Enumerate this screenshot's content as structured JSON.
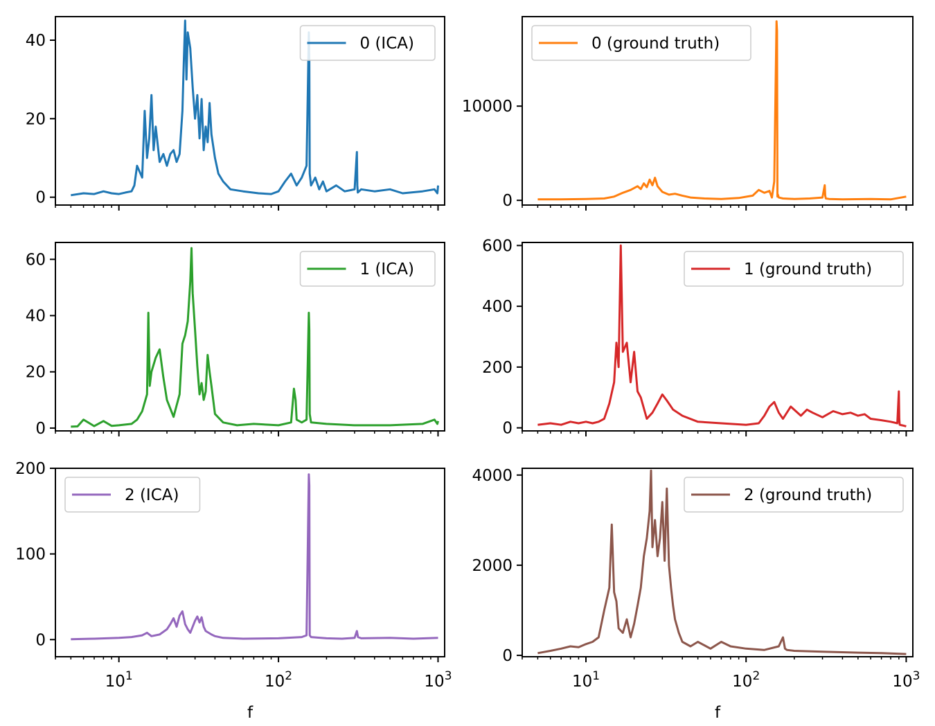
{
  "chart_data": [
    {
      "type": "line",
      "xscale": "log",
      "xlim": [
        4,
        1100
      ],
      "ylim": [
        -2,
        46
      ],
      "yticks": [
        0,
        20,
        40
      ],
      "xticks": [
        10,
        100,
        1000
      ],
      "xticklabels_visible": false,
      "xlabel": "",
      "legend": {
        "label": "0 (ICA)",
        "placement": "top-right"
      },
      "grid": false,
      "series": [
        {
          "name": "0 (ICA)",
          "color": "#1f77b4",
          "x": [
            5,
            6,
            7,
            8,
            9,
            10,
            11,
            12,
            12.5,
            13,
            14,
            14.5,
            15,
            15.5,
            16,
            16.5,
            17,
            18,
            19,
            20,
            21,
            22,
            23,
            24,
            25,
            25.5,
            26,
            26.5,
            27,
            28,
            29,
            30,
            31,
            32,
            33,
            34,
            35,
            36,
            37,
            38,
            40,
            42,
            45,
            50,
            60,
            75,
            90,
            100,
            110,
            120,
            130,
            140,
            150,
            155,
            156,
            157,
            160,
            170,
            180,
            190,
            200,
            230,
            260,
            300,
            310,
            312,
            314,
            330,
            400,
            500,
            600,
            800,
            950,
            990,
            1000
          ],
          "y": [
            0.5,
            1,
            0.8,
            1.5,
            1,
            0.8,
            1.2,
            1.5,
            3,
            8,
            5,
            22,
            10,
            15,
            26,
            12,
            18,
            9,
            11,
            8,
            11,
            12,
            9,
            11,
            22,
            34,
            45,
            30,
            42,
            38,
            28,
            20,
            26,
            15,
            25,
            12,
            18,
            14,
            24,
            16,
            10,
            6,
            4,
            2,
            1.5,
            1,
            0.8,
            1.5,
            4,
            6,
            3,
            5,
            8,
            42,
            35,
            6,
            3,
            5,
            2,
            4,
            1.5,
            3,
            1.5,
            2,
            11.5,
            3,
            1.2,
            2,
            1.5,
            2,
            1,
            1.5,
            2,
            1,
            3
          ]
        }
      ]
    },
    {
      "type": "line",
      "xscale": "log",
      "xlim": [
        4,
        1100
      ],
      "ylim": [
        -500,
        19500
      ],
      "yticks": [
        0,
        10000
      ],
      "xticks": [
        10,
        100,
        1000
      ],
      "xticklabels_visible": false,
      "xlabel": "",
      "legend": {
        "label": "0 (ground truth)",
        "placement": "top-left"
      },
      "grid": false,
      "series": [
        {
          "name": "0 (ground truth)",
          "color": "#ff7f0e",
          "x": [
            5,
            7,
            10,
            13,
            15,
            17,
            19,
            21,
            22,
            23,
            24,
            25,
            26,
            27,
            28,
            30,
            33,
            36,
            40,
            45,
            55,
            70,
            90,
            110,
            120,
            130,
            140,
            145,
            150,
            155,
            156,
            157,
            158,
            160,
            170,
            200,
            250,
            300,
            310,
            312,
            315,
            330,
            400,
            600,
            800,
            1000
          ],
          "y": [
            100,
            100,
            150,
            200,
            400,
            800,
            1100,
            1500,
            1200,
            1800,
            1400,
            2200,
            1600,
            2400,
            1500,
            900,
            600,
            700,
            500,
            300,
            200,
            150,
            250,
            500,
            1100,
            800,
            1000,
            300,
            2000,
            19000,
            18000,
            400,
            600,
            300,
            200,
            150,
            200,
            300,
            1600,
            500,
            200,
            150,
            100,
            150,
            100,
            400
          ]
        }
      ]
    },
    {
      "type": "line",
      "xscale": "log",
      "xlim": [
        4,
        1100
      ],
      "ylim": [
        -1,
        66
      ],
      "yticks": [
        0,
        20,
        40,
        60
      ],
      "xticks": [
        10,
        100,
        1000
      ],
      "xticklabels_visible": false,
      "xlabel": "",
      "legend": {
        "label": "1 (ICA)",
        "placement": "top-right"
      },
      "grid": false,
      "series": [
        {
          "name": "1 (ICA)",
          "color": "#2ca02c",
          "x": [
            5,
            5.5,
            6,
            7,
            8,
            9,
            10,
            12,
            13,
            14,
            15,
            15.3,
            15.6,
            16,
            17,
            18,
            19,
            20,
            22,
            24,
            25,
            26,
            27,
            28,
            28.5,
            29,
            30,
            31,
            32,
            33,
            34,
            35,
            36,
            37,
            38,
            40,
            45,
            55,
            70,
            100,
            120,
            125,
            128,
            130,
            140,
            150,
            155,
            156,
            157,
            160,
            200,
            300,
            500,
            800,
            950,
            990,
            1000
          ],
          "y": [
            0.5,
            0.6,
            3,
            0.7,
            2.5,
            0.8,
            1,
            1.5,
            3,
            6,
            12,
            41,
            15,
            20,
            25,
            28,
            18,
            10,
            4,
            12,
            30,
            33,
            38,
            52,
            64,
            48,
            35,
            22,
            12,
            16,
            10,
            13,
            26,
            20,
            15,
            5,
            2,
            1,
            1.5,
            1,
            2,
            14,
            10,
            3,
            2,
            3,
            41,
            35,
            5,
            2,
            1.5,
            1,
            1,
            1.5,
            3,
            1.5,
            2.5
          ]
        }
      ]
    },
    {
      "type": "line",
      "xscale": "log",
      "xlim": [
        4,
        1100
      ],
      "ylim": [
        -10,
        610
      ],
      "yticks": [
        0,
        200,
        400,
        600
      ],
      "xticks": [
        10,
        100,
        1000
      ],
      "xticklabels_visible": false,
      "xlabel": "",
      "legend": {
        "label": "1 (ground truth)",
        "placement": "top-right"
      },
      "grid": false,
      "series": [
        {
          "name": "1 (ground truth)",
          "color": "#d62728",
          "x": [
            5,
            6,
            7,
            8,
            9,
            10,
            11,
            12,
            13,
            14,
            15,
            15.5,
            16,
            16.5,
            17,
            18,
            19,
            20,
            21,
            22,
            24,
            26,
            28,
            30,
            32,
            35,
            40,
            50,
            70,
            100,
            120,
            130,
            140,
            150,
            160,
            170,
            190,
            220,
            240,
            260,
            300,
            350,
            400,
            450,
            500,
            550,
            600,
            700,
            800,
            880,
            900,
            905,
            910,
            950,
            1000
          ],
          "y": [
            10,
            15,
            10,
            20,
            15,
            20,
            15,
            20,
            30,
            80,
            150,
            280,
            200,
            600,
            250,
            280,
            150,
            250,
            120,
            100,
            30,
            50,
            80,
            110,
            90,
            60,
            40,
            20,
            15,
            10,
            15,
            40,
            70,
            85,
            50,
            30,
            70,
            40,
            60,
            50,
            35,
            55,
            45,
            50,
            40,
            45,
            30,
            25,
            20,
            15,
            120,
            30,
            10,
            8,
            5
          ]
        }
      ]
    },
    {
      "type": "line",
      "xscale": "log",
      "xlim": [
        4,
        1100
      ],
      "ylim": [
        -20,
        200
      ],
      "yticks": [
        0,
        100,
        200
      ],
      "xticks": [
        10,
        100,
        1000
      ],
      "xticklabels": [
        "10^1",
        "10^2",
        "10^3"
      ],
      "xlabel": "f",
      "legend": {
        "label": "2 (ICA)",
        "placement": "top-left"
      },
      "grid": false,
      "series": [
        {
          "name": "2 (ICA)",
          "color": "#9467bd",
          "x": [
            5,
            7,
            10,
            12,
            14,
            15,
            16,
            18,
            20,
            21,
            22,
            23,
            24,
            25,
            26,
            27,
            28,
            29,
            30,
            31,
            32,
            33,
            34,
            35,
            38,
            40,
            45,
            60,
            100,
            140,
            150,
            155,
            156,
            157,
            160,
            200,
            250,
            300,
            310,
            315,
            330,
            500,
            700,
            1000
          ],
          "y": [
            0.5,
            1,
            2,
            3,
            5,
            8,
            4,
            6,
            12,
            18,
            25,
            15,
            28,
            33,
            18,
            12,
            8,
            15,
            22,
            27,
            20,
            26,
            15,
            10,
            6,
            4,
            2,
            1,
            1.5,
            3,
            5,
            193,
            180,
            5,
            3,
            1.5,
            1,
            2,
            10,
            3,
            1.5,
            2,
            1,
            2
          ]
        }
      ]
    },
    {
      "type": "line",
      "xscale": "log",
      "xlim": [
        4,
        1100
      ],
      "ylim": [
        -30,
        4150
      ],
      "yticks": [
        0,
        2000,
        4000
      ],
      "xticks": [
        10,
        100,
        1000
      ],
      "xticklabels": [
        "10^1",
        "10^2",
        "10^3"
      ],
      "xlabel": "f",
      "legend": {
        "label": "2 (ground truth)",
        "placement": "top-right"
      },
      "grid": false,
      "series": [
        {
          "name": "2 (ground truth)",
          "color": "#8c564b",
          "x": [
            5,
            6,
            7,
            8,
            9,
            10,
            11,
            12,
            13,
            14,
            14.5,
            15,
            15.5,
            16,
            17,
            18,
            19,
            20,
            21,
            22,
            23,
            24,
            25,
            25.5,
            26,
            27,
            28,
            29,
            30,
            31,
            32,
            33,
            34,
            35,
            36,
            38,
            40,
            45,
            50,
            60,
            70,
            80,
            100,
            130,
            160,
            170,
            175,
            180,
            200,
            300,
            500,
            700,
            1000
          ],
          "y": [
            50,
            100,
            150,
            200,
            180,
            250,
            300,
            400,
            1000,
            1500,
            2900,
            1400,
            1200,
            600,
            500,
            800,
            400,
            700,
            1100,
            1500,
            2200,
            2600,
            3200,
            4100,
            2400,
            3000,
            2200,
            2600,
            3400,
            2100,
            3700,
            2000,
            1500,
            1100,
            800,
            500,
            300,
            200,
            300,
            150,
            300,
            200,
            150,
            120,
            200,
            400,
            150,
            120,
            100,
            80,
            60,
            50,
            30
          ]
        }
      ]
    }
  ]
}
